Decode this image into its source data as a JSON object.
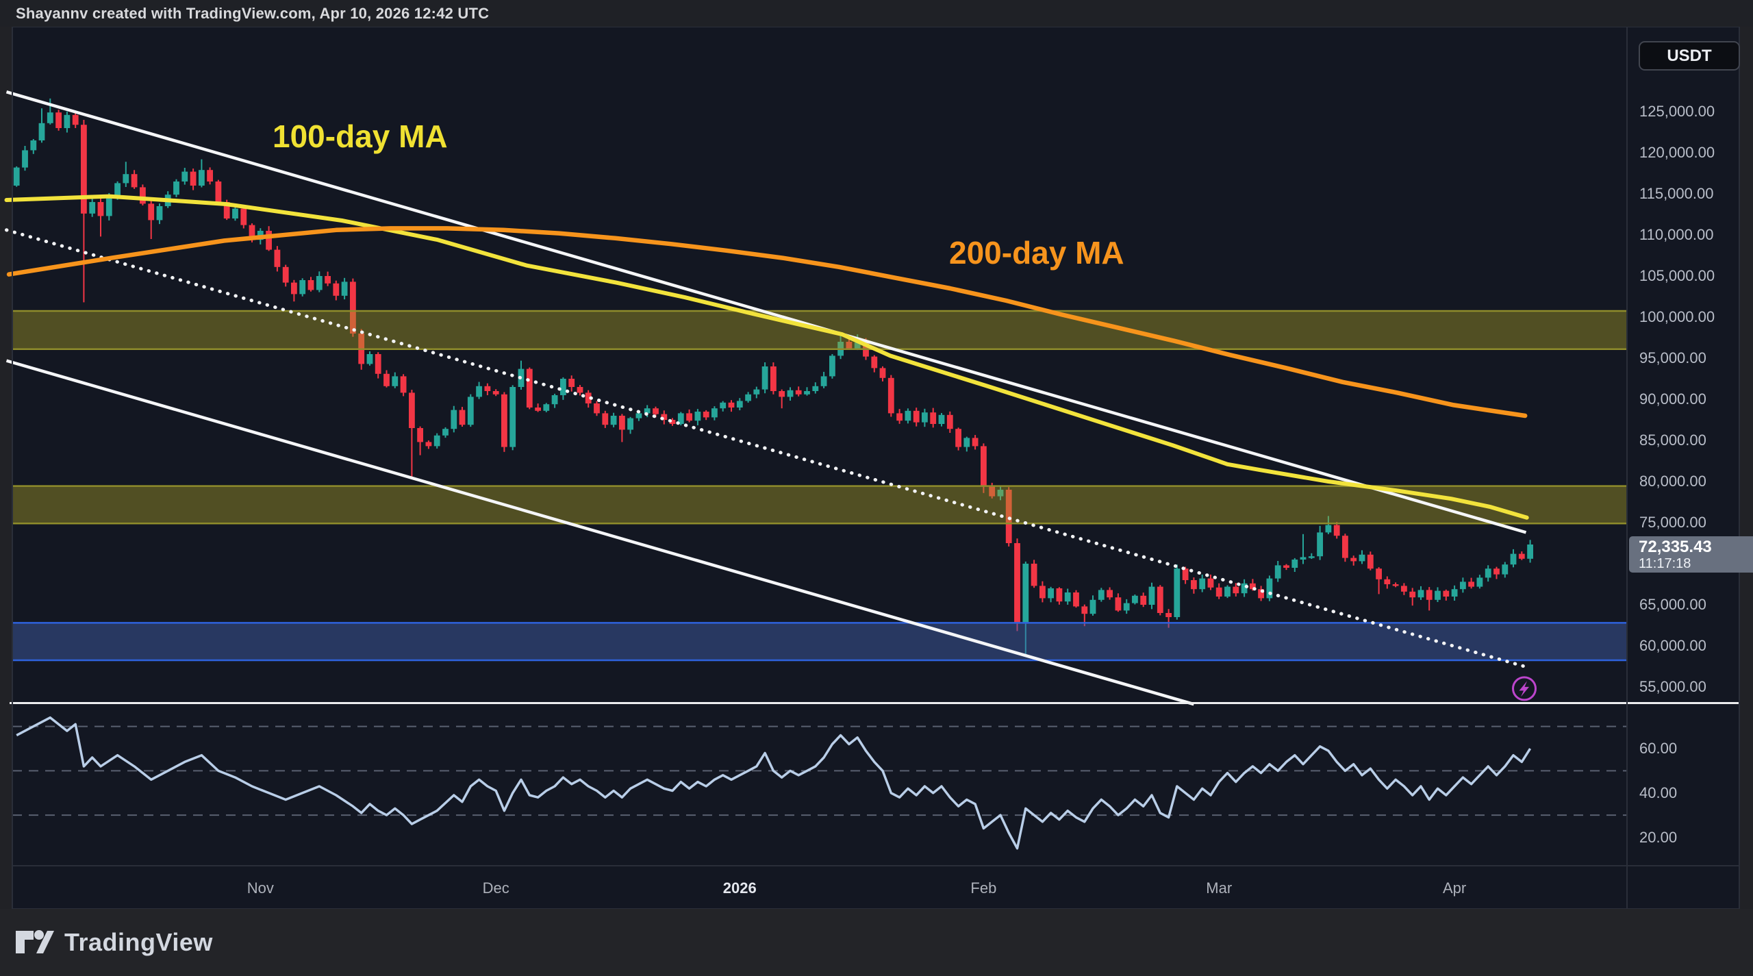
{
  "header": {
    "credit": "Shayannv created with TradingView.com, Apr 10, 2026 12:42 UTC"
  },
  "symbol_badge": {
    "label": "USDT"
  },
  "price_label": {
    "price": "72,335.43",
    "countdown": "11:17:18"
  },
  "annotations": {
    "ma100_label": "100-day MA",
    "ma200_label": "200-day MA",
    "flash_icon": {
      "index": 179.3,
      "price": 54800
    }
  },
  "footer": {
    "logo_text": "TradingView"
  },
  "colors": {
    "up": "#26a69a",
    "down": "#f23645",
    "ma100": "#f2e33c",
    "ma200": "#f7941c",
    "trendline": "#f5f6f8",
    "dotted_line": "#f2f3f5",
    "rsi_line": "#b9cee8",
    "rsi_dash": "#596070",
    "zone_olive_fill": "rgba(168,158,38,0.42)",
    "zone_olive_border": "#8f8c2b",
    "zone_blue_fill": "rgba(66,98,175,0.45)",
    "zone_blue_border": "#2e62dd",
    "pane_bg": "#131722",
    "pane_border": "#2a2e39",
    "separator": "#ecedef",
    "icon_purple": "#bc45cc"
  },
  "price_axis": {
    "ticks": [
      {
        "label": "125,000.00",
        "value": 125000
      },
      {
        "label": "120,000.00",
        "value": 120000
      },
      {
        "label": "115,000.00",
        "value": 115000
      },
      {
        "label": "110,000.00",
        "value": 110000
      },
      {
        "label": "105,000.00",
        "value": 105000
      },
      {
        "label": "100,000.00",
        "value": 100000
      },
      {
        "label": "95,000.00",
        "value": 95000
      },
      {
        "label": "90,000.00",
        "value": 90000
      },
      {
        "label": "85,000.00",
        "value": 85000
      },
      {
        "label": "80,000.00",
        "value": 80000
      },
      {
        "label": "75,000.00",
        "value": 75000
      },
      {
        "label": "65,000.00",
        "value": 65000
      },
      {
        "label": "60,000.00",
        "value": 60000
      },
      {
        "label": "55,000.00",
        "value": 55000
      }
    ]
  },
  "rsi_axis": {
    "ticks": [
      {
        "label": "60.00",
        "value": 60
      },
      {
        "label": "40.00",
        "value": 40
      },
      {
        "label": "20.00",
        "value": 20
      }
    ]
  },
  "time_axis": [
    {
      "label": "Nov",
      "index": 29,
      "emphasis": false
    },
    {
      "label": "Dec",
      "index": 57,
      "emphasis": false
    },
    {
      "label": "2026",
      "index": 86,
      "emphasis": true
    },
    {
      "label": "Feb",
      "index": 115,
      "emphasis": false
    },
    {
      "label": "Mar",
      "index": 143,
      "emphasis": false
    },
    {
      "label": "Apr",
      "index": 171,
      "emphasis": false
    }
  ],
  "chart_data": {
    "type": "candlestick",
    "symbol": "USDT",
    "timeframe": "1D",
    "last_price": 72335.43,
    "ylim": [
      52500,
      127600
    ],
    "rsi_ylim": [
      3,
      88
    ],
    "indicator": "RSI",
    "candles": {
      "first_open": 116000,
      "closes": [
        118200,
        120300,
        121500,
        123600,
        124900,
        123000,
        124600,
        123400,
        112600,
        114000,
        112300,
        114600,
        116300,
        117400,
        115800,
        113800,
        111800,
        113500,
        114900,
        116500,
        117700,
        116000,
        117900,
        116500,
        114000,
        112000,
        113200,
        111200,
        109400,
        110500,
        108200,
        106100,
        104200,
        102800,
        104500,
        103300,
        105000,
        104100,
        102600,
        104300,
        98000,
        94300,
        95500,
        93100,
        91600,
        92800,
        90800,
        86500,
        84800,
        84300,
        85600,
        86400,
        88700,
        86900,
        90300,
        91600,
        91000,
        90600,
        84200,
        91500,
        93700,
        89000,
        88600,
        89400,
        90500,
        92500,
        91500,
        90800,
        89500,
        88300,
        86900,
        88000,
        86300,
        87700,
        88300,
        88900,
        88200,
        87500,
        87000,
        88300,
        87400,
        88500,
        87800,
        88900,
        89600,
        89000,
        89800,
        90600,
        91200,
        94000,
        91000,
        90300,
        91100,
        90600,
        91000,
        91600,
        92800,
        95300,
        97000,
        96200,
        96900,
        95200,
        93800,
        92600,
        88300,
        87400,
        88600,
        87200,
        88400,
        87000,
        88100,
        86400,
        84200,
        85300,
        84300,
        79500,
        78200,
        79000,
        72500,
        62700,
        70000,
        67300,
        65800,
        67000,
        65400,
        66500,
        64800,
        63900,
        65600,
        66800,
        65900,
        64300,
        65200,
        66100,
        65000,
        67200,
        64000,
        63500,
        69400,
        68000,
        66900,
        68200,
        67100,
        66000,
        67200,
        66400,
        67600,
        66900,
        65800,
        68200,
        69800,
        69500,
        70500,
        70800,
        70900,
        73800,
        74700,
        73400,
        70700,
        70300,
        71100,
        69400,
        68100,
        67500,
        67300,
        66600,
        65900,
        66800,
        65600,
        66700,
        66000,
        66900,
        67800,
        67200,
        68300,
        69400,
        68700,
        69900,
        71200,
        70600,
        72335.43
      ],
      "high_overrides": {
        "3": 125400,
        "4": 126600,
        "8": 124000,
        "13": 118900,
        "22": 119200,
        "60": 94700,
        "89": 94500,
        "98": 98100,
        "100": 97900,
        "153": 73600,
        "155": 74600,
        "156": 75800
      },
      "low_overrides": {
        "8": 101800,
        "10": 109800,
        "16": 109500,
        "33": 101900,
        "41": 93600,
        "47": 80400,
        "48": 83200,
        "58": 83600,
        "72": 84800,
        "91": 88900,
        "115": 78600,
        "119": 61800,
        "120": 58900,
        "127": 62400,
        "137": 62200,
        "162": 66300,
        "166": 64900,
        "168": 64300
      }
    },
    "ma100": {
      "label": "100-day MA",
      "points": [
        [
          -1.2,
          114250
        ],
        [
          11,
          114700
        ],
        [
          24.9,
          113750
        ],
        [
          38.7,
          111750
        ],
        [
          50.1,
          109400
        ],
        [
          60.6,
          106300
        ],
        [
          71.3,
          104200
        ],
        [
          79.5,
          102400
        ],
        [
          87.6,
          100400
        ],
        [
          98.2,
          97900
        ],
        [
          103.9,
          95300
        ],
        [
          116.1,
          91400
        ],
        [
          128.3,
          87400
        ],
        [
          137.5,
          84400
        ],
        [
          144,
          82100
        ],
        [
          147.9,
          81400
        ],
        [
          156,
          80000
        ],
        [
          164.1,
          78900
        ],
        [
          170.6,
          77900
        ],
        [
          175.3,
          76900
        ],
        [
          179.6,
          75600
        ]
      ]
    },
    "ma200": {
      "label": "200-day MA",
      "points": [
        [
          -0.9,
          105200
        ],
        [
          11.3,
          107200
        ],
        [
          24.7,
          109300
        ],
        [
          38,
          110600
        ],
        [
          44.5,
          110800
        ],
        [
          51.2,
          110800
        ],
        [
          57.9,
          110600
        ],
        [
          64.5,
          110200
        ],
        [
          71.2,
          109600
        ],
        [
          77.8,
          108900
        ],
        [
          84.4,
          108100
        ],
        [
          91.1,
          107200
        ],
        [
          97.8,
          106100
        ],
        [
          104.4,
          104800
        ],
        [
          111,
          103500
        ],
        [
          117.7,
          102000
        ],
        [
          124.3,
          100300
        ],
        [
          131,
          98700
        ],
        [
          137.7,
          97100
        ],
        [
          144.3,
          95400
        ],
        [
          151,
          93800
        ],
        [
          157.7,
          92100
        ],
        [
          164.2,
          90800
        ],
        [
          170.9,
          89300
        ],
        [
          179.4,
          88000
        ]
      ]
    },
    "trendlines": [
      {
        "name": "upper-channel-line",
        "from": [
          -1.2,
          127400
        ],
        "to": [
          179.5,
          73800
        ],
        "style": "solid"
      },
      {
        "name": "lower-channel-line",
        "from": [
          -1.2,
          94700
        ],
        "to": [
          140,
          52900
        ],
        "style": "solid"
      },
      {
        "name": "descending-dotted-line",
        "from": [
          -1.2,
          110600
        ],
        "to": [
          180,
          57300
        ],
        "style": "dotted"
      }
    ],
    "zones": [
      {
        "name": "resistance-zone-high",
        "top": 100750,
        "bottom": 96100,
        "color": "olive"
      },
      {
        "name": "resistance-zone-mid",
        "top": 79450,
        "bottom": 74900,
        "color": "olive"
      },
      {
        "name": "support-zone",
        "top": 62800,
        "bottom": 58250,
        "color": "blue"
      }
    ],
    "rsi": {
      "levels": [
        70,
        50,
        30
      ],
      "points": [
        [
          0,
          66
        ],
        [
          2,
          70
        ],
        [
          4,
          74
        ],
        [
          6,
          68
        ],
        [
          7,
          71
        ],
        [
          8,
          52
        ],
        [
          9,
          56
        ],
        [
          10,
          52
        ],
        [
          12,
          57
        ],
        [
          14,
          52
        ],
        [
          16,
          46
        ],
        [
          18,
          50
        ],
        [
          20,
          54
        ],
        [
          22,
          57
        ],
        [
          24,
          50
        ],
        [
          26,
          47
        ],
        [
          28,
          43
        ],
        [
          30,
          40
        ],
        [
          32,
          37
        ],
        [
          34,
          40
        ],
        [
          36,
          43
        ],
        [
          38,
          39
        ],
        [
          40,
          34
        ],
        [
          41,
          31
        ],
        [
          42,
          35
        ],
        [
          43,
          32
        ],
        [
          44,
          30
        ],
        [
          45,
          33
        ],
        [
          46,
          30
        ],
        [
          47,
          26
        ],
        [
          48,
          28
        ],
        [
          50,
          32
        ],
        [
          52,
          39
        ],
        [
          53,
          36
        ],
        [
          54,
          43
        ],
        [
          55,
          46
        ],
        [
          56,
          43
        ],
        [
          57,
          41
        ],
        [
          58,
          32
        ],
        [
          59,
          40
        ],
        [
          60,
          46
        ],
        [
          61,
          39
        ],
        [
          62,
          38
        ],
        [
          63,
          41
        ],
        [
          64,
          43
        ],
        [
          65,
          47
        ],
        [
          66,
          44
        ],
        [
          67,
          46
        ],
        [
          68,
          43
        ],
        [
          69,
          41
        ],
        [
          70,
          38
        ],
        [
          71,
          41
        ],
        [
          72,
          38
        ],
        [
          73,
          42
        ],
        [
          74,
          44
        ],
        [
          75,
          46
        ],
        [
          76,
          44
        ],
        [
          77,
          42
        ],
        [
          78,
          41
        ],
        [
          79,
          45
        ],
        [
          80,
          42
        ],
        [
          81,
          45
        ],
        [
          82,
          43
        ],
        [
          83,
          46
        ],
        [
          84,
          48
        ],
        [
          85,
          46
        ],
        [
          86,
          48
        ],
        [
          87,
          50
        ],
        [
          88,
          52
        ],
        [
          89,
          58
        ],
        [
          90,
          50
        ],
        [
          91,
          47
        ],
        [
          92,
          50
        ],
        [
          93,
          48
        ],
        [
          94,
          50
        ],
        [
          95,
          52
        ],
        [
          96,
          56
        ],
        [
          97,
          62
        ],
        [
          98,
          66
        ],
        [
          99,
          62
        ],
        [
          100,
          65
        ],
        [
          101,
          59
        ],
        [
          102,
          54
        ],
        [
          103,
          50
        ],
        [
          104,
          40
        ],
        [
          105,
          38
        ],
        [
          106,
          42
        ],
        [
          107,
          39
        ],
        [
          108,
          43
        ],
        [
          109,
          40
        ],
        [
          110,
          43
        ],
        [
          111,
          38
        ],
        [
          112,
          34
        ],
        [
          113,
          37
        ],
        [
          114,
          35
        ],
        [
          115,
          24
        ],
        [
          116,
          27
        ],
        [
          117,
          30
        ],
        [
          118,
          22
        ],
        [
          119,
          15
        ],
        [
          120,
          33
        ],
        [
          121,
          30
        ],
        [
          122,
          27
        ],
        [
          123,
          31
        ],
        [
          124,
          28
        ],
        [
          125,
          32
        ],
        [
          126,
          29
        ],
        [
          127,
          27
        ],
        [
          128,
          33
        ],
        [
          129,
          37
        ],
        [
          130,
          34
        ],
        [
          131,
          30
        ],
        [
          132,
          33
        ],
        [
          133,
          37
        ],
        [
          134,
          34
        ],
        [
          135,
          39
        ],
        [
          136,
          31
        ],
        [
          137,
          29
        ],
        [
          138,
          43
        ],
        [
          139,
          40
        ],
        [
          140,
          37
        ],
        [
          141,
          42
        ],
        [
          142,
          39
        ],
        [
          143,
          45
        ],
        [
          144,
          49
        ],
        [
          145,
          45
        ],
        [
          146,
          49
        ],
        [
          147,
          52
        ],
        [
          148,
          49
        ],
        [
          149,
          53
        ],
        [
          150,
          50
        ],
        [
          151,
          54
        ],
        [
          152,
          57
        ],
        [
          153,
          53
        ],
        [
          154,
          57
        ],
        [
          155,
          61
        ],
        [
          156,
          59
        ],
        [
          157,
          54
        ],
        [
          158,
          50
        ],
        [
          159,
          53
        ],
        [
          160,
          48
        ],
        [
          161,
          51
        ],
        [
          162,
          46
        ],
        [
          163,
          42
        ],
        [
          164,
          46
        ],
        [
          165,
          43
        ],
        [
          166,
          39
        ],
        [
          167,
          43
        ],
        [
          168,
          37
        ],
        [
          169,
          42
        ],
        [
          170,
          39
        ],
        [
          171,
          43
        ],
        [
          172,
          47
        ],
        [
          173,
          44
        ],
        [
          174,
          48
        ],
        [
          175,
          52
        ],
        [
          176,
          48
        ],
        [
          177,
          52
        ],
        [
          178,
          57
        ],
        [
          179,
          54
        ],
        [
          180,
          60
        ]
      ]
    }
  }
}
